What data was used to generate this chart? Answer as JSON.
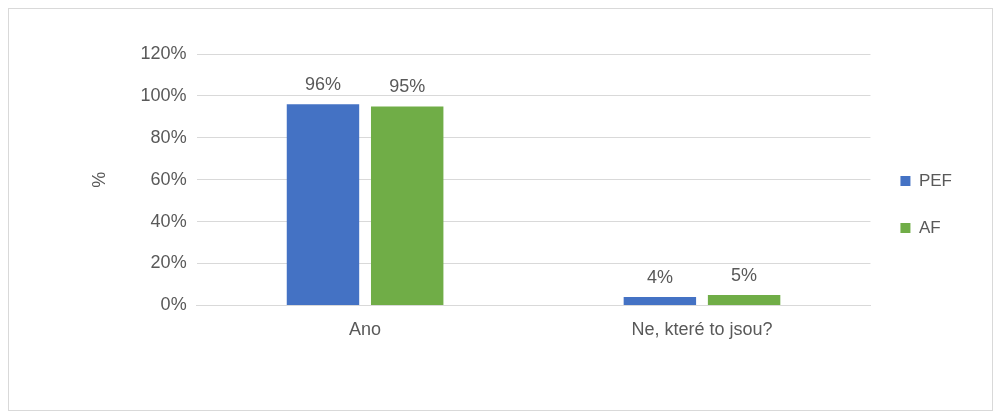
{
  "chart_data": {
    "type": "bar",
    "categories": [
      "Ano",
      "Ne, které to jsou?"
    ],
    "ylabel": "%",
    "series": [
      {
        "name": "PEF",
        "color": "#4472c4",
        "values": [
          96,
          4
        ],
        "value_labels": [
          "96%",
          "4%"
        ]
      },
      {
        "name": "AF",
        "color": "#70ad47",
        "values": [
          95,
          5
        ],
        "value_labels": [
          "95%",
          "5%"
        ]
      }
    ],
    "ylim": [
      0,
      120
    ],
    "yticks": [
      {
        "value": 0,
        "label": "0%"
      },
      {
        "value": 20,
        "label": "20%"
      },
      {
        "value": 40,
        "label": "40%"
      },
      {
        "value": 60,
        "label": "60%"
      },
      {
        "value": 80,
        "label": "80%"
      },
      {
        "value": 100,
        "label": "100%"
      },
      {
        "value": 120,
        "label": "120%"
      }
    ],
    "grid": "y",
    "legend": "right"
  }
}
